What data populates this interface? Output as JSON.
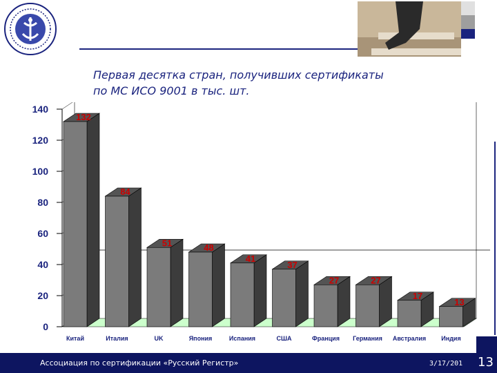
{
  "title_line1": "Первая десятка стран,  получивших сертификаты",
  "title_line2": "по МС ИСО 9001 в тыс. шт.",
  "footer_text": "Ассоциация по сертификации «Русский Регистр»",
  "footer_date": "3/17/201",
  "page_number": "13",
  "colors": {
    "bar_front": "#7b7b7b",
    "bar_side": "#3c3c3c",
    "bar_top": "#545454",
    "value_label": "#cc0000",
    "floor": "#ccffcc",
    "title": "#1a237e",
    "footer_bg": "#0d1560"
  },
  "chart_data": {
    "type": "bar",
    "categories": [
      "Китай",
      "Италия",
      "UK",
      "Япония",
      "Испания",
      "США",
      "Франция",
      "Германия",
      "Австралия",
      "Индия"
    ],
    "values": [
      132,
      84,
      51,
      48,
      41,
      37,
      27,
      27,
      17,
      13
    ],
    "yticks": [
      0,
      20,
      40,
      60,
      80,
      100,
      120,
      140
    ],
    "ylim": [
      0,
      140
    ],
    "grid": false,
    "style": "3d"
  }
}
